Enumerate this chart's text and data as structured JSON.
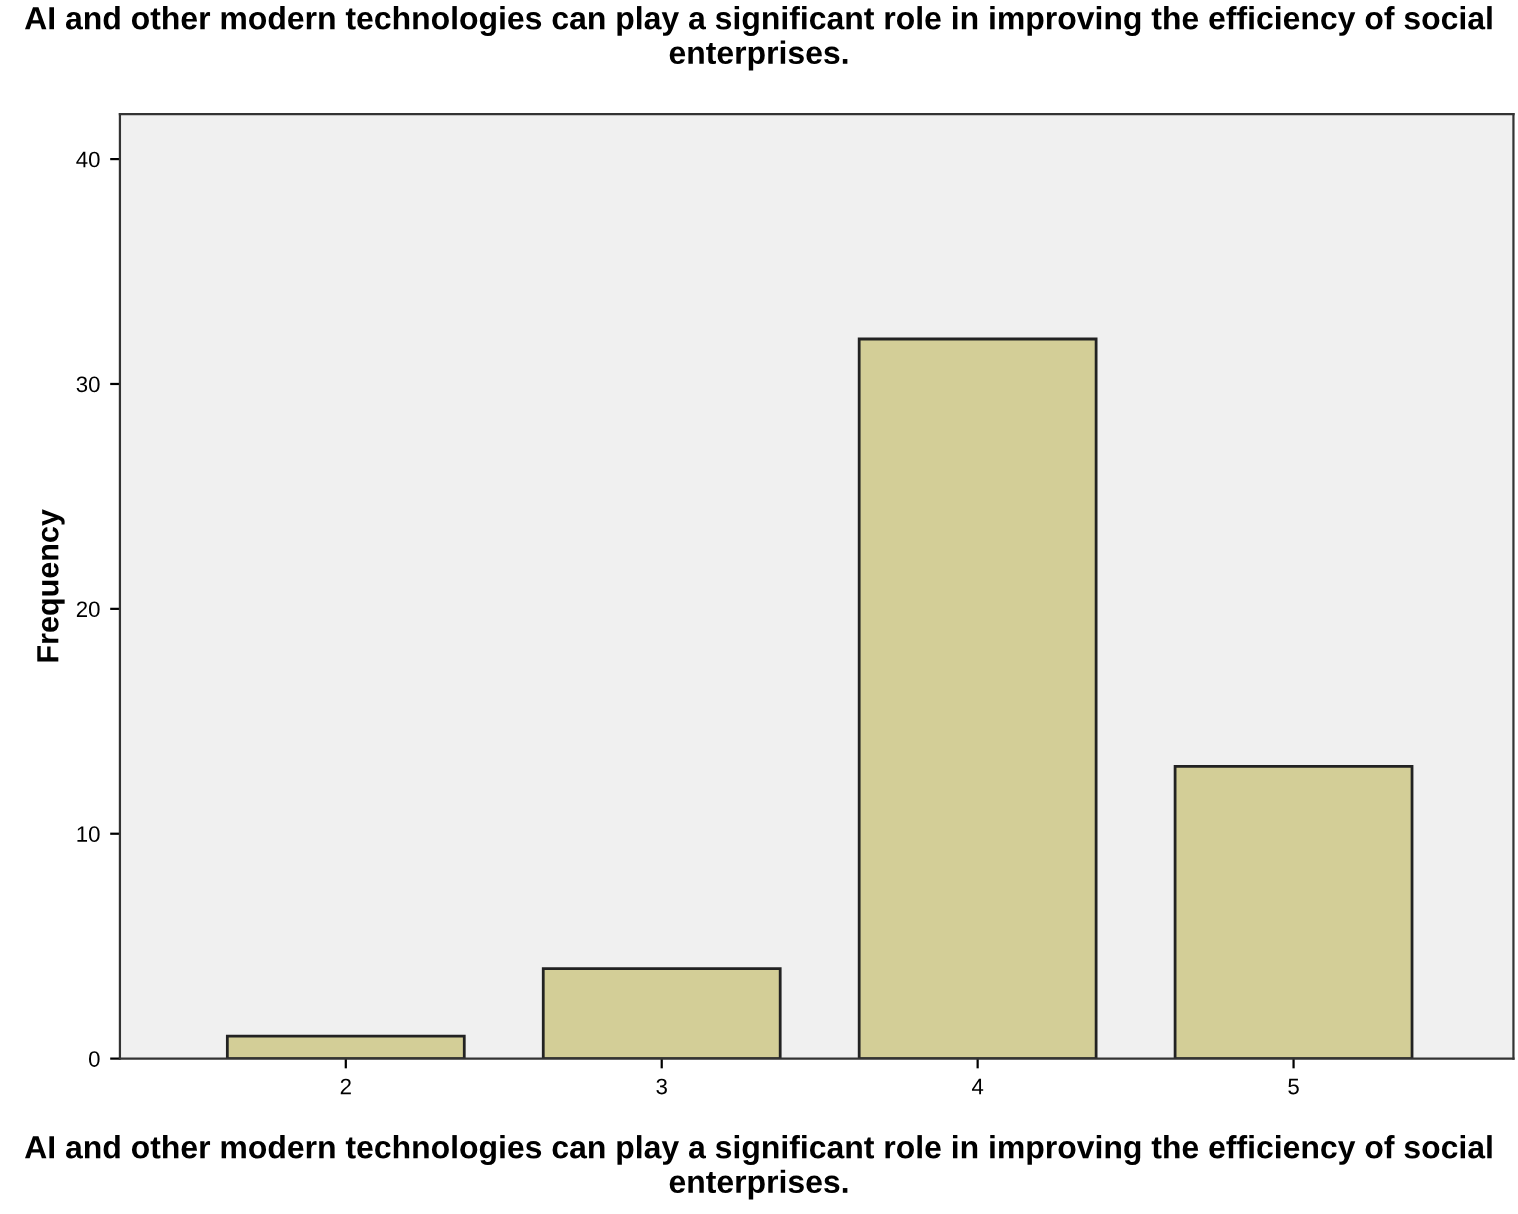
{
  "chart_data": {
    "type": "bar",
    "title": "AI and other modern technologies can play a significant role in improving the efficiency of social enterprises.",
    "xlabel": "AI and other modern technologies can play a significant role in improving the efficiency of social enterprises.",
    "ylabel": "Frequency",
    "categories": [
      "2",
      "3",
      "4",
      "5"
    ],
    "values": [
      1,
      4,
      32,
      13
    ],
    "color": "#d3ce97",
    "ylim": [
      0,
      42
    ],
    "yticks": [
      0,
      10,
      20,
      30,
      40
    ],
    "grid": false,
    "legend": false
  }
}
